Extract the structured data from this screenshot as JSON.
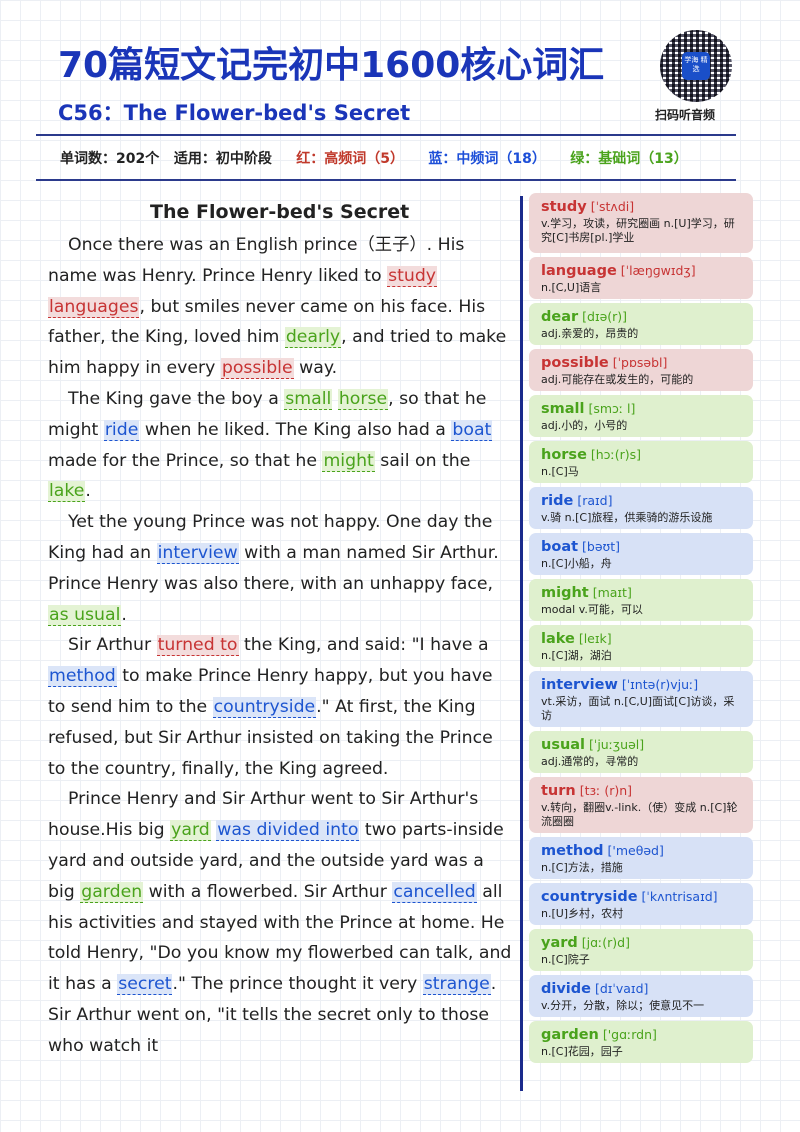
{
  "header": {
    "title": "70篇短文记完初中1600核心词汇",
    "subtitle": "C56：The Flower-bed's Secret",
    "qr_center_text": "学海 精选",
    "qr_caption": "扫码听音频"
  },
  "stats": {
    "word_count": "单词数：202个",
    "level": "适用：初中阶段",
    "red": "红：高频词（5）",
    "blue": "蓝：中频词（18）",
    "green": "绿：基础词（13）"
  },
  "colors": {
    "red": "#c73434",
    "blue": "#1d55d0",
    "green": "#4aa31c",
    "title": "#1a35b8"
  },
  "story": {
    "title": "The Flower-bed's Secret",
    "paragraphs": [
      [
        {
          "t": "Once there was an English prince（王子）. His name was Henry. Prince Henry liked to "
        },
        {
          "t": "study",
          "c": "red"
        },
        {
          "t": " "
        },
        {
          "t": "languages",
          "c": "red"
        },
        {
          "t": ", but smiles never came on his face. His father, the King, loved him "
        },
        {
          "t": "dearly",
          "c": "green"
        },
        {
          "t": ", and tried to make him happy in every "
        },
        {
          "t": "possible",
          "c": "red"
        },
        {
          "t": " way."
        }
      ],
      [
        {
          "t": "The King gave the boy a "
        },
        {
          "t": "small",
          "c": "green"
        },
        {
          "t": " "
        },
        {
          "t": "horse",
          "c": "green"
        },
        {
          "t": ", so that he might "
        },
        {
          "t": "ride",
          "c": "blue"
        },
        {
          "t": " when he liked. The King also had a "
        },
        {
          "t": "boat",
          "c": "blue"
        },
        {
          "t": " made for the Prince, so that he "
        },
        {
          "t": "might",
          "c": "green"
        },
        {
          "t": " sail on the "
        },
        {
          "t": "lake",
          "c": "green"
        },
        {
          "t": "."
        }
      ],
      [
        {
          "t": "Yet the young Prince was not happy. One day the King had an "
        },
        {
          "t": "interview",
          "c": "blue"
        },
        {
          "t": " with a man named Sir Arthur. Prince Henry was also there, with an unhappy face, "
        },
        {
          "t": "as usual",
          "c": "green"
        },
        {
          "t": "."
        }
      ],
      [
        {
          "t": "Sir Arthur "
        },
        {
          "t": "turned to",
          "c": "red"
        },
        {
          "t": " the King, and said: \"I have a "
        },
        {
          "t": "method",
          "c": "blue"
        },
        {
          "t": " to make Prince Henry happy, but you have to send him to the "
        },
        {
          "t": "countryside",
          "c": "blue"
        },
        {
          "t": ".\" At first, the King refused, but Sir Arthur insisted on taking the Prince to the country, finally, the King agreed."
        }
      ],
      [
        {
          "t": "Prince Henry and Sir Arthur went to Sir Arthur's house.His big "
        },
        {
          "t": "yard",
          "c": "green"
        },
        {
          "t": " "
        },
        {
          "t": "was divided into",
          "c": "blue"
        },
        {
          "t": " two parts-inside yard and outside yard, and the outside yard was a big "
        },
        {
          "t": "garden",
          "c": "green"
        },
        {
          "t": " with a flowerbed. Sir Arthur "
        },
        {
          "t": "cancelled",
          "c": "blue"
        },
        {
          "t": " all his activities and stayed with the Prince at home. He told Henry, \"Do you know my flowerbed can talk, and it has a "
        },
        {
          "t": "secret",
          "c": "blue"
        },
        {
          "t": ".\" The prince thought it very "
        },
        {
          "t": "strange",
          "c": "blue"
        },
        {
          "t": ". Sir Arthur went on, \"it tells the secret only to those who watch it"
        }
      ]
    ]
  },
  "vocab": [
    {
      "word": "study",
      "ipa": "[ˈstʌdi]",
      "def": "v.学习，攻读，研究圈画 n.[U]学习，研究[C]书房[pl.]学业",
      "c": "red"
    },
    {
      "word": "language",
      "ipa": "[ˈlæŋɡwɪdʒ]",
      "def": "n.[C,U]语言",
      "c": "red"
    },
    {
      "word": "dear",
      "ipa": "[dɪə(r)]",
      "def": "adj.亲爱的，昂贵的",
      "c": "green"
    },
    {
      "word": "possible",
      "ipa": "[ˈpɒsəbl]",
      "def": "adj.可能存在或发生的，可能的",
      "c": "red"
    },
    {
      "word": "small",
      "ipa": "[smɔː l]",
      "def": "adj.小的，小号的",
      "c": "green"
    },
    {
      "word": "horse",
      "ipa": "[hɔː(r)s]",
      "def": "n.[C]马",
      "c": "green"
    },
    {
      "word": "ride",
      "ipa": "[raɪd]",
      "def": "v.骑 n.[C]旅程，供乘骑的游乐设施",
      "c": "blue"
    },
    {
      "word": "boat",
      "ipa": "[bəʊt]",
      "def": "n.[C]小船，舟",
      "c": "blue"
    },
    {
      "word": "might",
      "ipa": "[maɪt]",
      "def": "modal v.可能，可以",
      "c": "green"
    },
    {
      "word": "lake",
      "ipa": "[leɪk]",
      "def": "n.[C]湖，湖泊",
      "c": "green"
    },
    {
      "word": "interview",
      "ipa": "[ˈɪntə(r)vjuː]",
      "def": "vt.采访，面试 n.[C,U]面试[C]访谈，采访",
      "c": "blue"
    },
    {
      "word": "usual",
      "ipa": "[ˈjuːʒuəl]",
      "def": "adj.通常的，寻常的",
      "c": "green"
    },
    {
      "word": "turn",
      "ipa": "[tɜː (r)n]",
      "def": "v.转向，翻圈v.-link.（使）变成 n.[C]轮流圈圈",
      "c": "red"
    },
    {
      "word": "method",
      "ipa": "['meθəd]",
      "def": "n.[C]方法，措施",
      "c": "blue"
    },
    {
      "word": "countryside",
      "ipa": "[ˈkʌntrisaɪd]",
      "def": "n.[U]乡村，农村",
      "c": "blue"
    },
    {
      "word": "yard",
      "ipa": "[jɑː(r)d]",
      "def": "n.[C]院子",
      "c": "green"
    },
    {
      "word": "divide",
      "ipa": "[dɪˈvaɪd]",
      "def": "v.分开，分散，除以；使意见不一",
      "c": "blue"
    },
    {
      "word": "garden",
      "ipa": "['gɑːrdn]",
      "def": "n.[C]花园，园子",
      "c": "green"
    }
  ]
}
